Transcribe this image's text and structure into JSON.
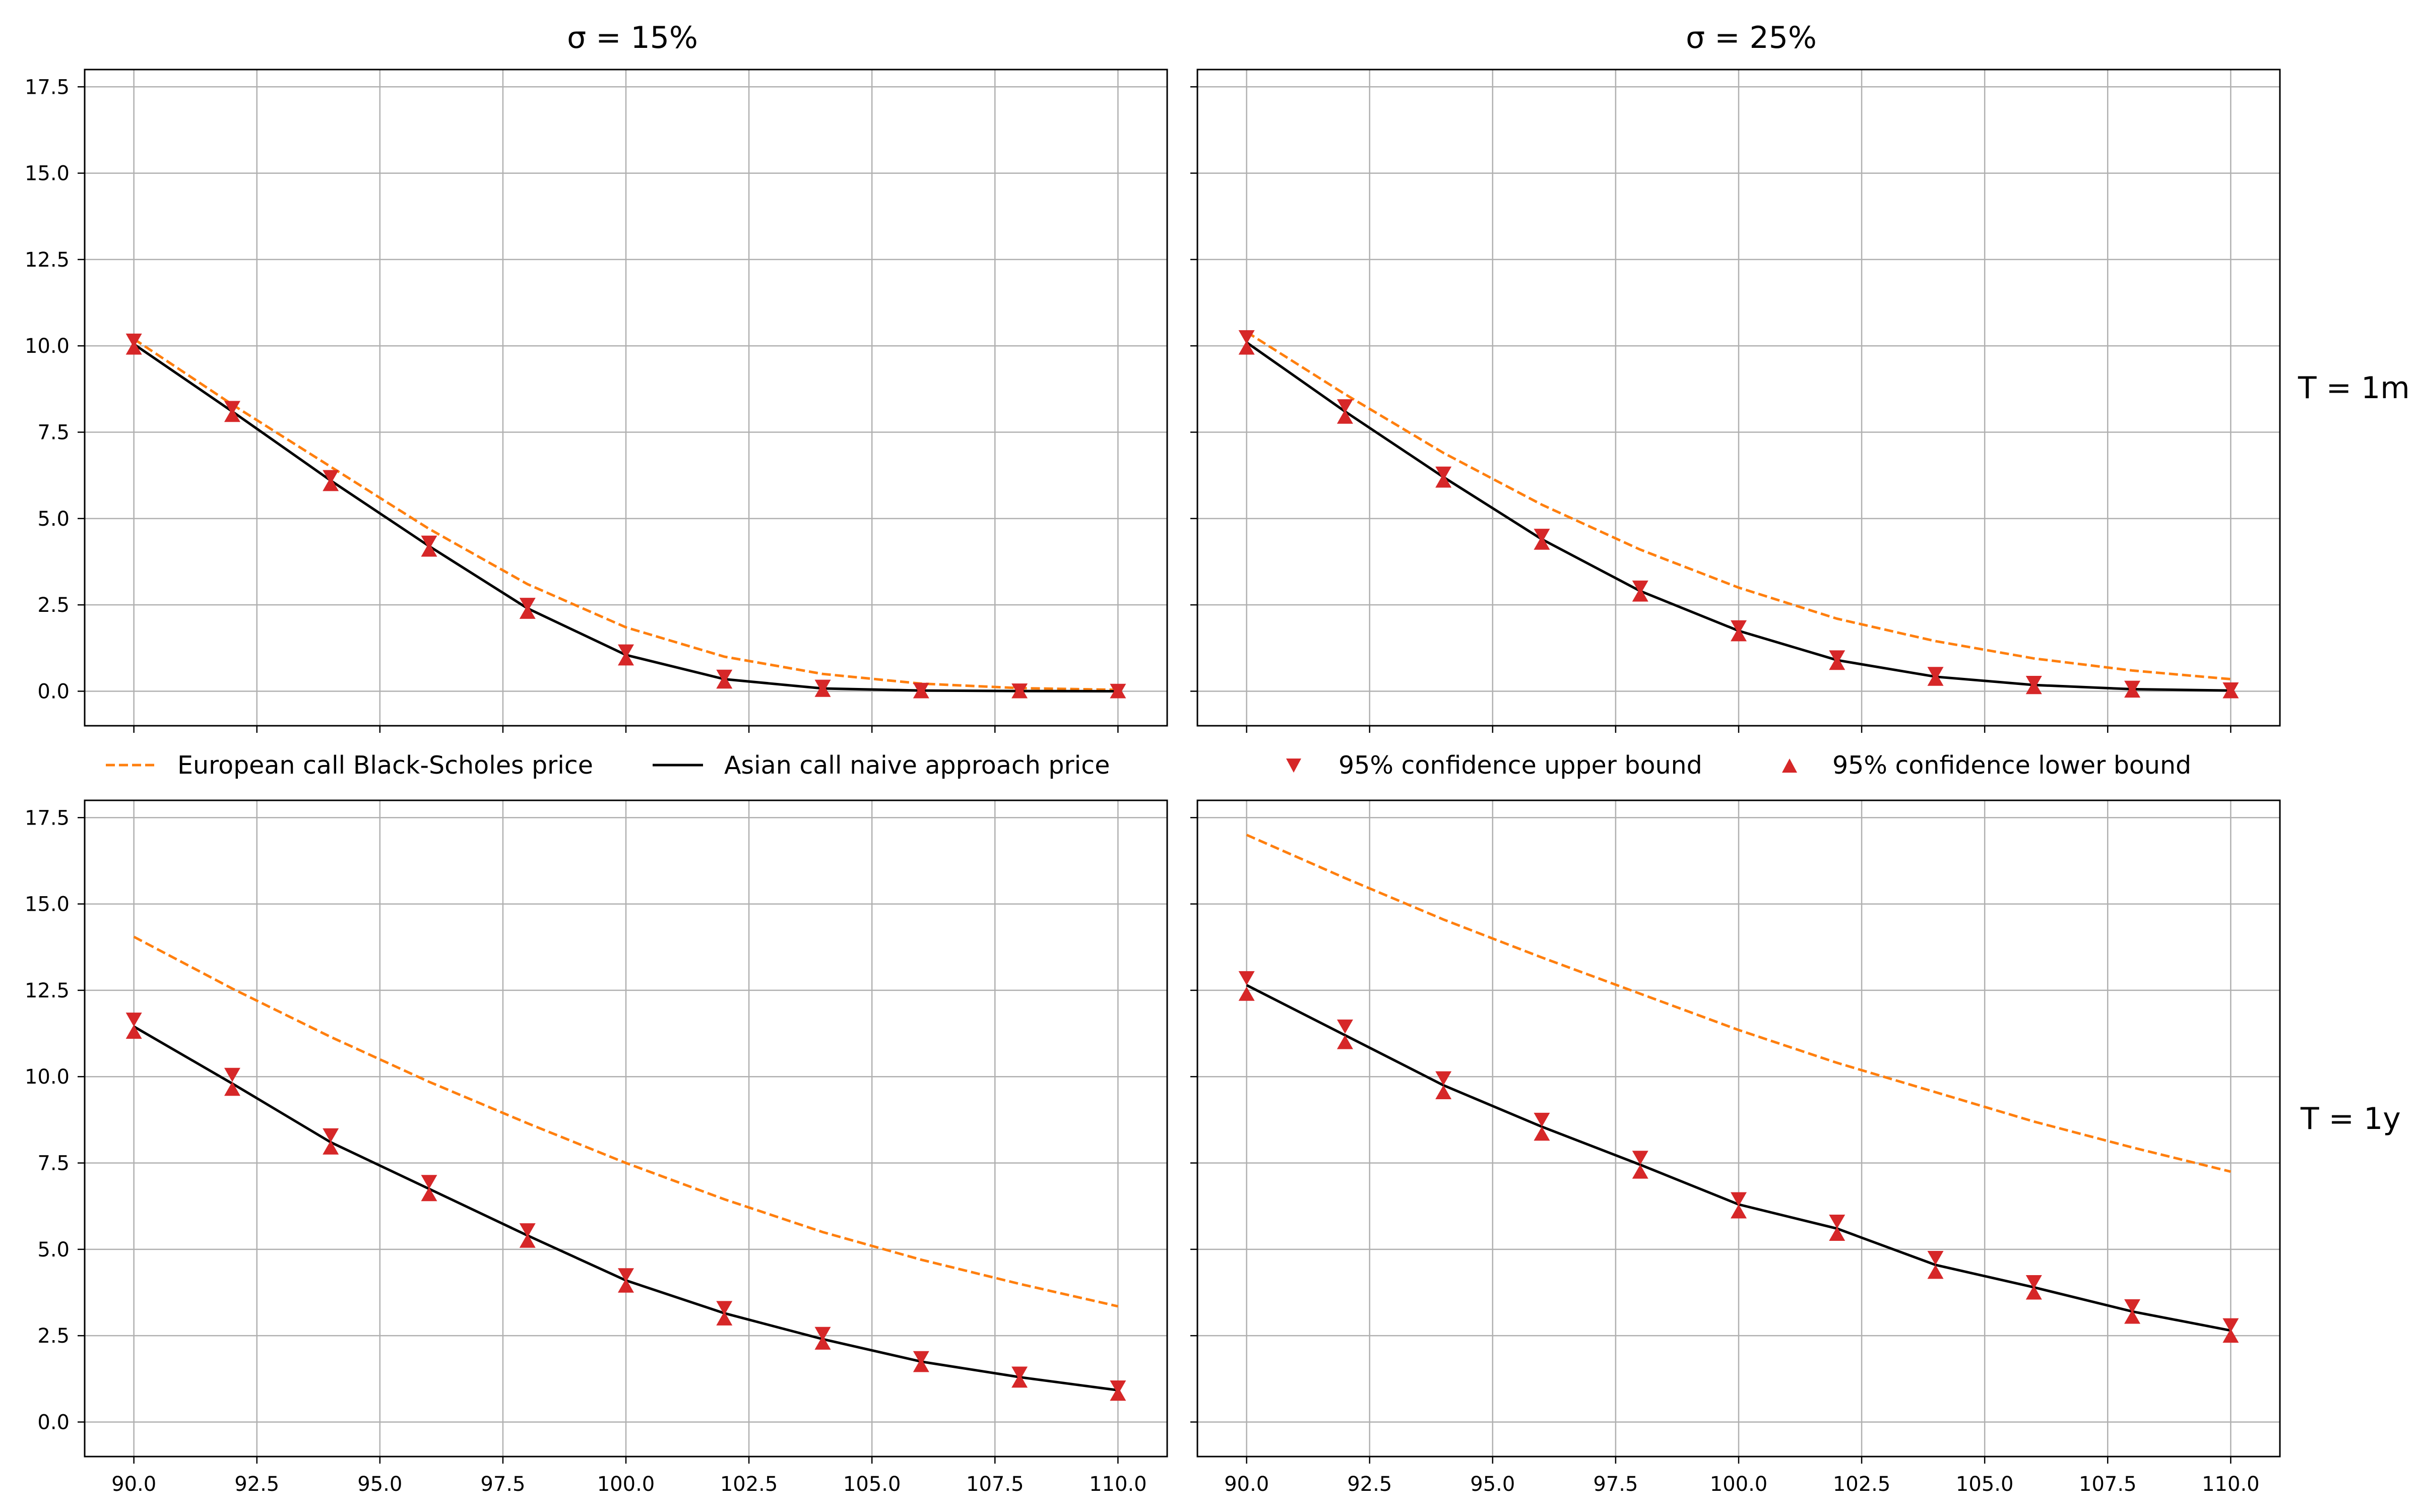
{
  "colors": {
    "european": "#ff7f0e",
    "asian": "#000000",
    "bounds": "#d62728",
    "grid": "#b0b0b0"
  },
  "column_titles": [
    "σ = 15%",
    "σ = 25%"
  ],
  "row_titles": [
    "T = 1m",
    "T = 1y"
  ],
  "legend": {
    "european": "European call Black-Scholes price",
    "asian": "Asian call naive approach price",
    "upper": "95% confidence upper bound",
    "lower": "95% confidence lower bound"
  },
  "chart_data": [
    {
      "type": "line",
      "panel": "top-left",
      "title": "σ = 15%",
      "x": [
        90,
        92,
        94,
        96,
        98,
        100,
        102,
        104,
        106,
        108,
        110
      ],
      "series": [
        {
          "name": "European call Black-Scholes price",
          "values": [
            10.2,
            8.3,
            6.5,
            4.7,
            3.1,
            1.85,
            1.0,
            0.5,
            0.22,
            0.09,
            0.04
          ]
        },
        {
          "name": "Asian call naive approach price",
          "values": [
            10.05,
            8.1,
            6.1,
            4.2,
            2.4,
            1.05,
            0.35,
            0.08,
            0.02,
            0.005,
            0.0
          ]
        },
        {
          "name": "95% confidence upper bound",
          "values": [
            10.15,
            8.2,
            6.2,
            4.3,
            2.5,
            1.15,
            0.42,
            0.13,
            0.04,
            0.02,
            0.01
          ]
        },
        {
          "name": "95% confidence lower bound",
          "values": [
            9.95,
            8.0,
            6.0,
            4.1,
            2.3,
            0.95,
            0.28,
            0.04,
            0.0,
            0.0,
            0.0
          ]
        }
      ],
      "xlim": [
        89,
        111
      ],
      "ylim": [
        -1,
        18
      ],
      "yticks": [
        0.0,
        2.5,
        5.0,
        7.5,
        10.0,
        12.5,
        15.0,
        17.5
      ],
      "grid": true
    },
    {
      "type": "line",
      "panel": "top-right",
      "title": "σ = 25%",
      "right_label": "T = 1m",
      "x": [
        90,
        92,
        94,
        96,
        98,
        100,
        102,
        104,
        106,
        108,
        110
      ],
      "series": [
        {
          "name": "European call Black-Scholes price",
          "values": [
            10.4,
            8.6,
            6.9,
            5.4,
            4.1,
            3.0,
            2.1,
            1.45,
            0.95,
            0.6,
            0.35
          ]
        },
        {
          "name": "Asian call naive approach price",
          "values": [
            10.1,
            8.1,
            6.2,
            4.4,
            2.9,
            1.75,
            0.9,
            0.42,
            0.18,
            0.06,
            0.02
          ]
        },
        {
          "name": "95% confidence upper bound",
          "values": [
            10.25,
            8.25,
            6.3,
            4.5,
            3.0,
            1.85,
            0.98,
            0.5,
            0.24,
            0.1,
            0.05
          ]
        },
        {
          "name": "95% confidence lower bound",
          "values": [
            9.95,
            7.95,
            6.1,
            4.3,
            2.8,
            1.65,
            0.82,
            0.36,
            0.12,
            0.02,
            0.0
          ]
        }
      ],
      "xlim": [
        89,
        111
      ],
      "ylim": [
        -1,
        18
      ],
      "grid": true
    },
    {
      "type": "line",
      "panel": "bottom-left",
      "x": [
        90,
        92,
        94,
        96,
        98,
        100,
        102,
        104,
        106,
        108,
        110
      ],
      "xticks": [
        90.0,
        92.5,
        95.0,
        97.5,
        100.0,
        102.5,
        105.0,
        107.5,
        110.0
      ],
      "series": [
        {
          "name": "European call Black-Scholes price",
          "values": [
            14.05,
            12.55,
            11.15,
            9.85,
            8.65,
            7.5,
            6.45,
            5.5,
            4.7,
            4.0,
            3.35
          ]
        },
        {
          "name": "Asian call naive approach price",
          "values": [
            11.45,
            9.8,
            8.1,
            6.75,
            5.4,
            4.1,
            3.15,
            2.4,
            1.75,
            1.3,
            0.92
          ]
        },
        {
          "name": "95% confidence upper bound",
          "values": [
            11.65,
            10.05,
            8.3,
            6.95,
            5.55,
            4.25,
            3.3,
            2.55,
            1.85,
            1.4,
            1.0
          ]
        },
        {
          "name": "95% confidence lower bound",
          "values": [
            11.3,
            9.65,
            7.95,
            6.6,
            5.25,
            3.95,
            3.0,
            2.3,
            1.65,
            1.2,
            0.82
          ]
        }
      ],
      "xlim": [
        89,
        111
      ],
      "ylim": [
        -1,
        18
      ],
      "yticks": [
        0.0,
        2.5,
        5.0,
        7.5,
        10.0,
        12.5,
        15.0,
        17.5
      ],
      "grid": true
    },
    {
      "type": "line",
      "panel": "bottom-right",
      "right_label": "T = 1y",
      "x": [
        90,
        92,
        94,
        96,
        98,
        100,
        102,
        104,
        106,
        108,
        110
      ],
      "xticks": [
        90.0,
        92.5,
        95.0,
        97.5,
        100.0,
        102.5,
        105.0,
        107.5,
        110.0
      ],
      "series": [
        {
          "name": "European call Black-Scholes price",
          "values": [
            17.0,
            15.75,
            14.55,
            13.45,
            12.4,
            11.35,
            10.4,
            9.55,
            8.7,
            7.95,
            7.25
          ]
        },
        {
          "name": "Asian call naive approach price",
          "values": [
            12.65,
            11.2,
            9.75,
            8.55,
            7.45,
            6.3,
            5.6,
            4.55,
            3.9,
            3.2,
            2.65
          ]
        },
        {
          "name": "95% confidence upper bound",
          "values": [
            12.85,
            11.45,
            9.95,
            8.75,
            7.65,
            6.45,
            5.8,
            4.75,
            4.05,
            3.35,
            2.8
          ]
        },
        {
          "name": "95% confidence lower bound",
          "values": [
            12.4,
            11.0,
            9.55,
            8.35,
            7.25,
            6.1,
            5.45,
            4.35,
            3.75,
            3.05,
            2.5
          ]
        }
      ],
      "xlim": [
        89,
        111
      ],
      "ylim": [
        -1,
        18
      ],
      "grid": true
    }
  ]
}
